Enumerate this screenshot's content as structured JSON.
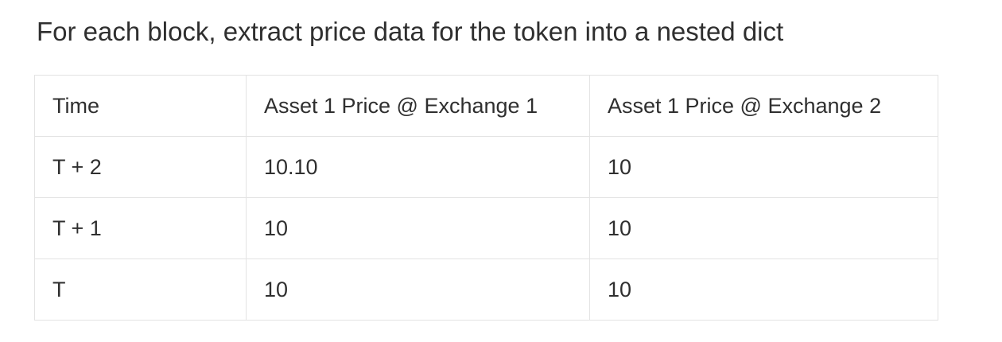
{
  "heading": "For each block, extract price data for the token into a nested dict",
  "table": {
    "headers": [
      "Time",
      "Asset 1 Price @ Exchange 1",
      "Asset 1 Price @ Exchange 2"
    ],
    "rows": [
      [
        "T + 2",
        "10.10",
        "10"
      ],
      [
        "T + 1",
        "10",
        "10"
      ],
      [
        "T",
        "10",
        "10"
      ]
    ]
  },
  "colors": {
    "text": "#2f2f2f",
    "border": "#e3e3e3",
    "background": "#ffffff"
  }
}
